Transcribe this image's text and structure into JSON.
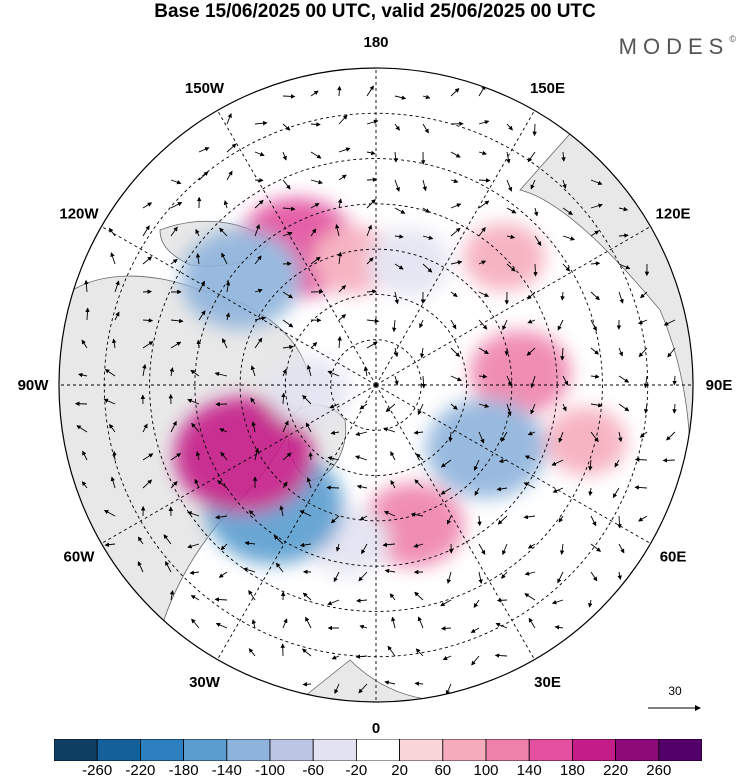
{
  "title": "Base 15/06/2025 00 UTC, valid 25/06/2025 00 UTC",
  "brand": "MODES",
  "brand_mark": "©",
  "longitude_labels": [
    {
      "text": "180",
      "lon": 180
    },
    {
      "text": "150E",
      "lon": 150
    },
    {
      "text": "120E",
      "lon": 120
    },
    {
      "text": "90E",
      "lon": 90
    },
    {
      "text": "60E",
      "lon": 60
    },
    {
      "text": "30E",
      "lon": 30
    },
    {
      "text": "0",
      "lon": 0
    },
    {
      "text": "30W",
      "lon": -30
    },
    {
      "text": "60W",
      "lon": -60
    },
    {
      "text": "90W",
      "lon": -90
    },
    {
      "text": "120W",
      "lon": -120
    },
    {
      "text": "150W",
      "lon": -150
    }
  ],
  "reference_vector": {
    "value": "30"
  },
  "colorbar": {
    "ticks": [
      "-260",
      "-220",
      "-180",
      "-140",
      "-100",
      "-60",
      "-20",
      "20",
      "60",
      "100",
      "140",
      "180",
      "220",
      "260"
    ],
    "colors": [
      "#0f3f63",
      "#14609a",
      "#2d7fc0",
      "#5a9dcf",
      "#8eb3dc",
      "#bdc5e4",
      "#e3e3f2",
      "#ffffff",
      "#fbd6d9",
      "#f6acbc",
      "#ef82aa",
      "#e2509f",
      "#c51d88",
      "#8e0a78",
      "#54006a"
    ]
  },
  "anomalies": [
    {
      "lon": -150,
      "lat": 55,
      "value": 140
    },
    {
      "lon": -170,
      "lat": 62,
      "value": 60
    },
    {
      "lon": -128,
      "lat": 52,
      "value": -140
    },
    {
      "lon": 165,
      "lat": 62,
      "value": -60
    },
    {
      "lon": 135,
      "lat": 50,
      "value": 60
    },
    {
      "lon": 95,
      "lat": 58,
      "value": 100
    },
    {
      "lon": 75,
      "lat": 42,
      "value": 60
    },
    {
      "lon": 60,
      "lat": 62,
      "value": -140
    },
    {
      "lon": 15,
      "lat": 58,
      "value": 100
    },
    {
      "lon": -10,
      "lat": 55,
      "value": -60
    },
    {
      "lon": -40,
      "lat": 55,
      "value": -180
    },
    {
      "lon": -62,
      "lat": 57,
      "value": 180
    },
    {
      "lon": -85,
      "lat": 75,
      "value": -60
    }
  ]
}
